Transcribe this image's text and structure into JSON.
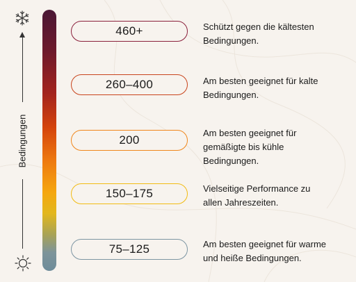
{
  "axis": {
    "label": "Bedingungen"
  },
  "icons": {
    "top": "snowflake-icon",
    "bottom": "sun-icon"
  },
  "levels": [
    {
      "range": "460+",
      "color": "#8a1f3b",
      "description_lines": [
        "Schützt gegen die kältesten",
        "Bedingungen."
      ]
    },
    {
      "range": "260–400",
      "color": "#c8431b",
      "description_lines": [
        "Am besten geeignet für kalte",
        "Bedingungen."
      ]
    },
    {
      "range": "200",
      "color": "#f0861a",
      "description_lines": [
        "Am besten geeignet für",
        "gemäßigte bis kühle",
        "Bedingungen."
      ]
    },
    {
      "range": "150–175",
      "color": "#f2bb12",
      "description_lines": [
        "Vielseitige Performance zu",
        "allen Jahreszeiten."
      ]
    },
    {
      "range": "75–125",
      "color": "#7c95a2",
      "description_lines": [
        "Am besten geeignet für warme",
        "und heiße Bedingungen."
      ]
    }
  ]
}
